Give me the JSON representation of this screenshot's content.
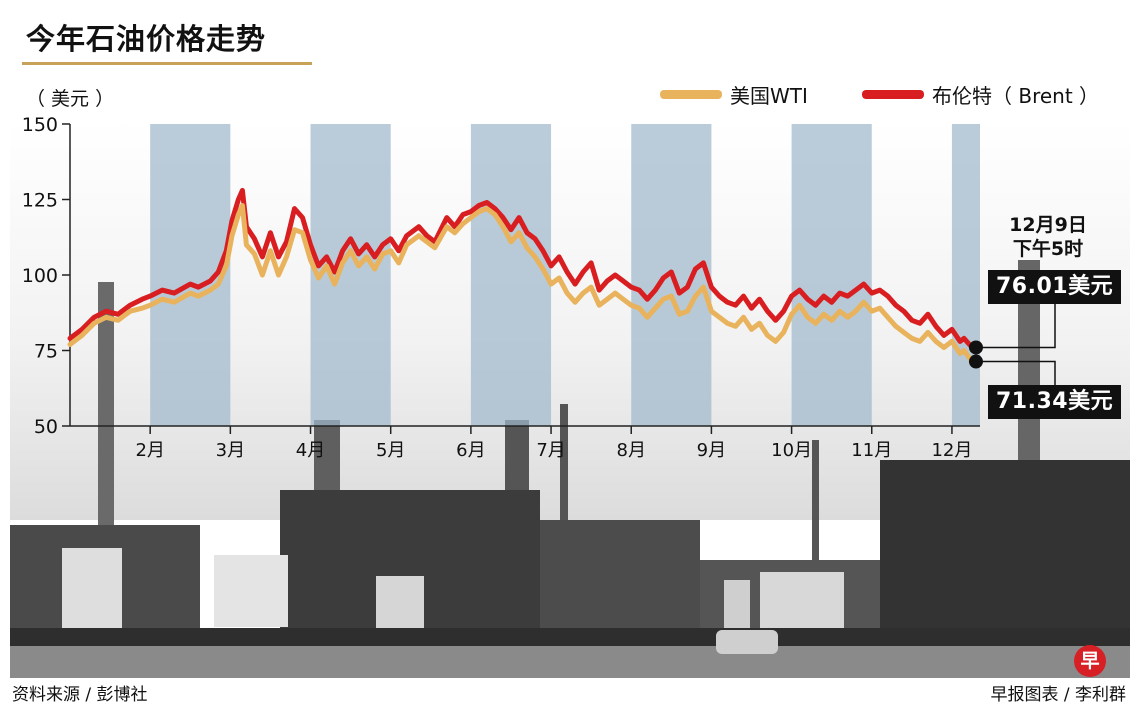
{
  "title": "今年石油价格走势",
  "unit_label": "（ 美元 ）",
  "legend": [
    {
      "label": "美国WTI",
      "color": "#e8b35c"
    },
    {
      "label": "布伦特（ Brent ）",
      "color": "#d81e20"
    }
  ],
  "callout": {
    "date_line1": "12月9日",
    "date_line2": "下午5时",
    "brent_price": "76.01美元",
    "wti_price": "71.34美元"
  },
  "footer": {
    "source": "资料来源 / 彭博社",
    "credit": "早报图表 / 李利群",
    "logo_char": "早"
  },
  "chart_data": {
    "type": "line",
    "title": "今年石油价格走势",
    "ylabel": "（ 美元 ）",
    "xlabel": "",
    "ylim": [
      50,
      150
    ],
    "yticks": [
      50,
      75,
      100,
      125,
      150
    ],
    "x_domain_months": [
      1,
      12.35
    ],
    "month_labels": [
      "2月",
      "3月",
      "4月",
      "5月",
      "6月",
      "7月",
      "8月",
      "9月",
      "10月",
      "11月",
      "12月"
    ],
    "month_positions": [
      2,
      3,
      4,
      5,
      6,
      7,
      8,
      9,
      10,
      11,
      12
    ],
    "shaded_months": [
      2,
      4,
      6,
      8,
      10,
      12
    ],
    "series": [
      {
        "name": "布伦特（ Brent ）",
        "color": "#d81e20",
        "points": [
          [
            1.0,
            79
          ],
          [
            1.15,
            82
          ],
          [
            1.3,
            86
          ],
          [
            1.45,
            88
          ],
          [
            1.6,
            87
          ],
          [
            1.75,
            90
          ],
          [
            1.9,
            92
          ],
          [
            2.0,
            93
          ],
          [
            2.15,
            95
          ],
          [
            2.3,
            94
          ],
          [
            2.5,
            97
          ],
          [
            2.6,
            96
          ],
          [
            2.75,
            98
          ],
          [
            2.85,
            101
          ],
          [
            2.95,
            108
          ],
          [
            3.02,
            118
          ],
          [
            3.1,
            125
          ],
          [
            3.15,
            128
          ],
          [
            3.2,
            116
          ],
          [
            3.3,
            112
          ],
          [
            3.4,
            106
          ],
          [
            3.5,
            114
          ],
          [
            3.6,
            106
          ],
          [
            3.7,
            111
          ],
          [
            3.8,
            122
          ],
          [
            3.9,
            119
          ],
          [
            4.0,
            110
          ],
          [
            4.1,
            103
          ],
          [
            4.2,
            106
          ],
          [
            4.3,
            101
          ],
          [
            4.4,
            108
          ],
          [
            4.5,
            112
          ],
          [
            4.6,
            107
          ],
          [
            4.7,
            110
          ],
          [
            4.8,
            106
          ],
          [
            4.9,
            110
          ],
          [
            5.0,
            112
          ],
          [
            5.1,
            108
          ],
          [
            5.2,
            113
          ],
          [
            5.35,
            116
          ],
          [
            5.45,
            113
          ],
          [
            5.55,
            111
          ],
          [
            5.7,
            119
          ],
          [
            5.8,
            116
          ],
          [
            5.9,
            120
          ],
          [
            6.0,
            121
          ],
          [
            6.1,
            123
          ],
          [
            6.2,
            124
          ],
          [
            6.3,
            122
          ],
          [
            6.4,
            119
          ],
          [
            6.5,
            115
          ],
          [
            6.6,
            119
          ],
          [
            6.7,
            114
          ],
          [
            6.8,
            112
          ],
          [
            6.9,
            108
          ],
          [
            7.0,
            103
          ],
          [
            7.1,
            106
          ],
          [
            7.2,
            101
          ],
          [
            7.3,
            97
          ],
          [
            7.4,
            101
          ],
          [
            7.5,
            104
          ],
          [
            7.6,
            95
          ],
          [
            7.7,
            98
          ],
          [
            7.8,
            100
          ],
          [
            7.9,
            98
          ],
          [
            8.0,
            96
          ],
          [
            8.1,
            95
          ],
          [
            8.2,
            92
          ],
          [
            8.3,
            95
          ],
          [
            8.4,
            99
          ],
          [
            8.5,
            101
          ],
          [
            8.6,
            94
          ],
          [
            8.7,
            96
          ],
          [
            8.8,
            102
          ],
          [
            8.9,
            104
          ],
          [
            9.0,
            96
          ],
          [
            9.1,
            93
          ],
          [
            9.2,
            91
          ],
          [
            9.3,
            90
          ],
          [
            9.4,
            93
          ],
          [
            9.5,
            89
          ],
          [
            9.6,
            92
          ],
          [
            9.7,
            88
          ],
          [
            9.8,
            85
          ],
          [
            9.9,
            88
          ],
          [
            10.0,
            93
          ],
          [
            10.1,
            95
          ],
          [
            10.2,
            92
          ],
          [
            10.3,
            90
          ],
          [
            10.4,
            93
          ],
          [
            10.5,
            91
          ],
          [
            10.6,
            94
          ],
          [
            10.7,
            93
          ],
          [
            10.8,
            95
          ],
          [
            10.9,
            97
          ],
          [
            11.0,
            94
          ],
          [
            11.1,
            95
          ],
          [
            11.2,
            93
          ],
          [
            11.3,
            90
          ],
          [
            11.4,
            88
          ],
          [
            11.5,
            85
          ],
          [
            11.6,
            84
          ],
          [
            11.7,
            87
          ],
          [
            11.8,
            83
          ],
          [
            11.9,
            80
          ],
          [
            12.0,
            82
          ],
          [
            12.1,
            78
          ],
          [
            12.15,
            79
          ],
          [
            12.25,
            76.01
          ]
        ]
      },
      {
        "name": "美国WTI",
        "color": "#e8b35c",
        "points": [
          [
            1.0,
            77
          ],
          [
            1.15,
            80
          ],
          [
            1.3,
            84
          ],
          [
            1.45,
            86
          ],
          [
            1.6,
            85
          ],
          [
            1.75,
            88
          ],
          [
            1.9,
            89
          ],
          [
            2.0,
            90
          ],
          [
            2.15,
            92
          ],
          [
            2.3,
            91
          ],
          [
            2.5,
            94
          ],
          [
            2.6,
            93
          ],
          [
            2.75,
            95
          ],
          [
            2.85,
            97
          ],
          [
            2.95,
            103
          ],
          [
            3.02,
            113
          ],
          [
            3.1,
            120
          ],
          [
            3.15,
            123
          ],
          [
            3.2,
            110
          ],
          [
            3.3,
            107
          ],
          [
            3.4,
            100
          ],
          [
            3.5,
            108
          ],
          [
            3.6,
            100
          ],
          [
            3.7,
            106
          ],
          [
            3.8,
            115
          ],
          [
            3.9,
            114
          ],
          [
            4.0,
            105
          ],
          [
            4.1,
            99
          ],
          [
            4.2,
            103
          ],
          [
            4.3,
            97
          ],
          [
            4.4,
            104
          ],
          [
            4.5,
            108
          ],
          [
            4.6,
            103
          ],
          [
            4.7,
            106
          ],
          [
            4.8,
            102
          ],
          [
            4.9,
            107
          ],
          [
            5.0,
            108
          ],
          [
            5.1,
            104
          ],
          [
            5.2,
            110
          ],
          [
            5.35,
            113
          ],
          [
            5.45,
            111
          ],
          [
            5.55,
            109
          ],
          [
            5.7,
            116
          ],
          [
            5.8,
            114
          ],
          [
            5.9,
            117
          ],
          [
            6.0,
            119
          ],
          [
            6.1,
            121
          ],
          [
            6.2,
            122
          ],
          [
            6.3,
            120
          ],
          [
            6.4,
            116
          ],
          [
            6.5,
            111
          ],
          [
            6.6,
            114
          ],
          [
            6.7,
            109
          ],
          [
            6.8,
            106
          ],
          [
            6.9,
            102
          ],
          [
            7.0,
            97
          ],
          [
            7.1,
            99
          ],
          [
            7.2,
            94
          ],
          [
            7.3,
            91
          ],
          [
            7.4,
            94
          ],
          [
            7.5,
            96
          ],
          [
            7.6,
            90
          ],
          [
            7.7,
            92
          ],
          [
            7.8,
            94
          ],
          [
            7.9,
            92
          ],
          [
            8.0,
            90
          ],
          [
            8.1,
            89
          ],
          [
            8.2,
            86
          ],
          [
            8.3,
            89
          ],
          [
            8.4,
            92
          ],
          [
            8.5,
            93
          ],
          [
            8.6,
            87
          ],
          [
            8.7,
            88
          ],
          [
            8.8,
            93
          ],
          [
            8.9,
            96
          ],
          [
            9.0,
            88
          ],
          [
            9.1,
            86
          ],
          [
            9.2,
            84
          ],
          [
            9.3,
            83
          ],
          [
            9.4,
            86
          ],
          [
            9.5,
            82
          ],
          [
            9.6,
            84
          ],
          [
            9.7,
            80
          ],
          [
            9.8,
            78
          ],
          [
            9.9,
            81
          ],
          [
            10.0,
            87
          ],
          [
            10.1,
            90
          ],
          [
            10.2,
            86
          ],
          [
            10.3,
            84
          ],
          [
            10.4,
            87
          ],
          [
            10.5,
            85
          ],
          [
            10.6,
            88
          ],
          [
            10.7,
            86
          ],
          [
            10.8,
            88
          ],
          [
            10.9,
            91
          ],
          [
            11.0,
            88
          ],
          [
            11.1,
            89
          ],
          [
            11.2,
            86
          ],
          [
            11.3,
            83
          ],
          [
            11.4,
            81
          ],
          [
            11.5,
            79
          ],
          [
            11.6,
            78
          ],
          [
            11.7,
            81
          ],
          [
            11.8,
            78
          ],
          [
            11.9,
            76
          ],
          [
            12.0,
            78
          ],
          [
            12.1,
            74
          ],
          [
            12.15,
            75
          ],
          [
            12.25,
            71.34
          ]
        ]
      }
    ]
  }
}
